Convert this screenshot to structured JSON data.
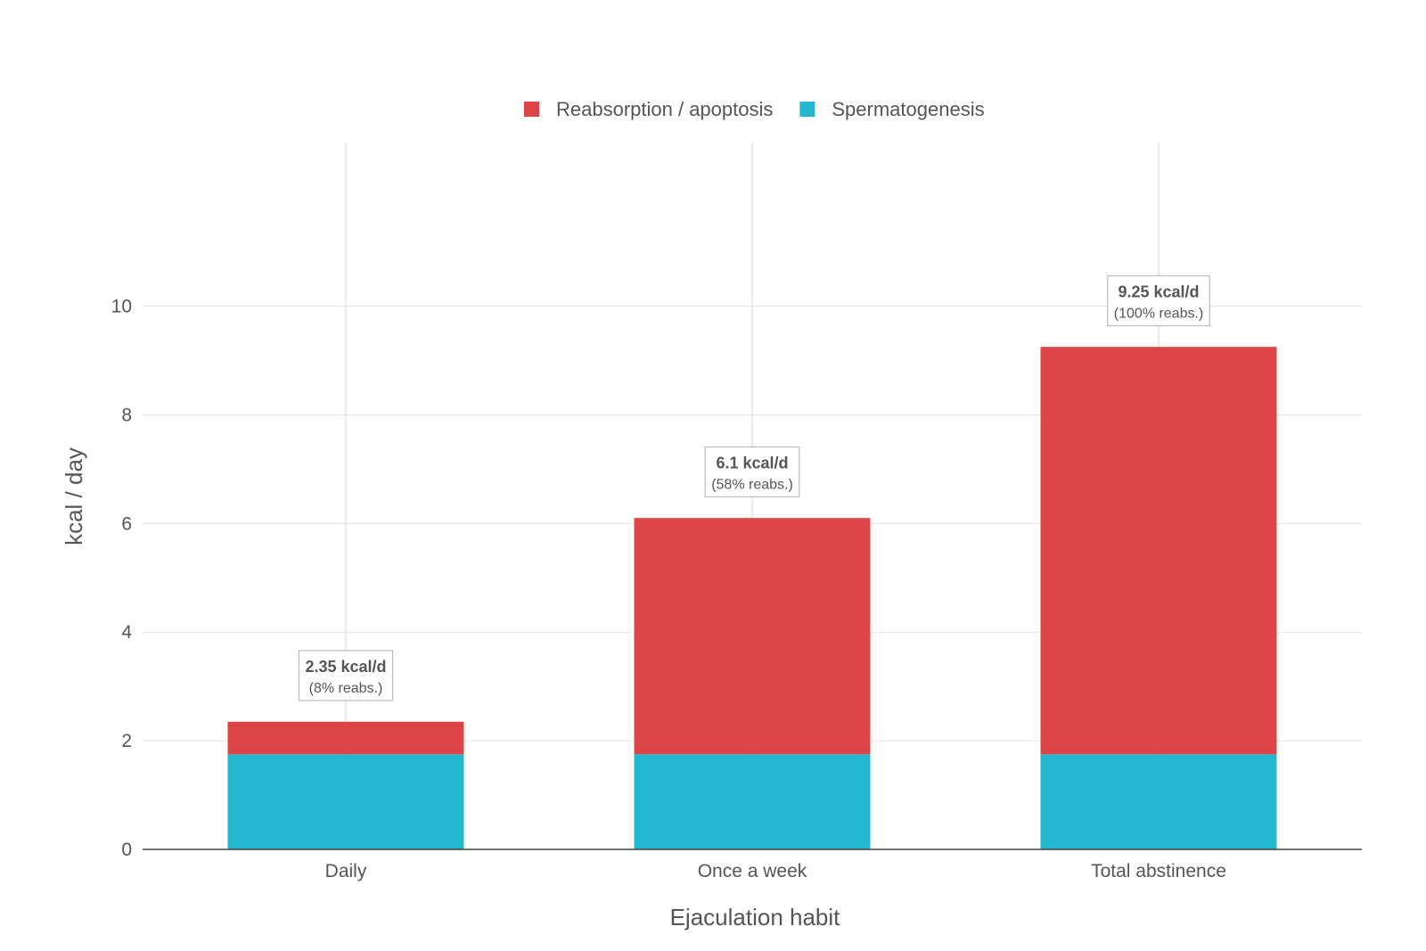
{
  "chart_data": {
    "type": "bar",
    "stacked": true,
    "categories": [
      "Daily",
      "Once a week",
      "Total abstinence"
    ],
    "series": [
      {
        "name": "Spermatogenesis",
        "color": "#22b8cf",
        "values": [
          1.75,
          1.75,
          1.75
        ]
      },
      {
        "name": "Reabsorption / apoptosis",
        "color": "#dc4548",
        "values": [
          0.6,
          4.35,
          7.5
        ]
      }
    ],
    "legend": {
      "position": "top-center",
      "order": [
        "Reabsorption / apoptosis",
        "Spermatogenesis"
      ]
    },
    "xlabel": "Ejaculation habit",
    "ylabel": "kcal / day",
    "ylim": [
      0,
      13
    ],
    "yticks": [
      0,
      2,
      4,
      6,
      8,
      10
    ],
    "grid": true,
    "annotations": [
      {
        "category": "Daily",
        "main": "2.35 kcal/d",
        "sub": "(8% reabs.)",
        "y": 3.2
      },
      {
        "category": "Once a week",
        "main": "6.1 kcal/d",
        "sub": "(58% reabs.)",
        "y": 6.95
      },
      {
        "category": "Total abstinence",
        "main": "9.25 kcal/d",
        "sub": "(100% reabs.)",
        "y": 10.1
      }
    ]
  }
}
